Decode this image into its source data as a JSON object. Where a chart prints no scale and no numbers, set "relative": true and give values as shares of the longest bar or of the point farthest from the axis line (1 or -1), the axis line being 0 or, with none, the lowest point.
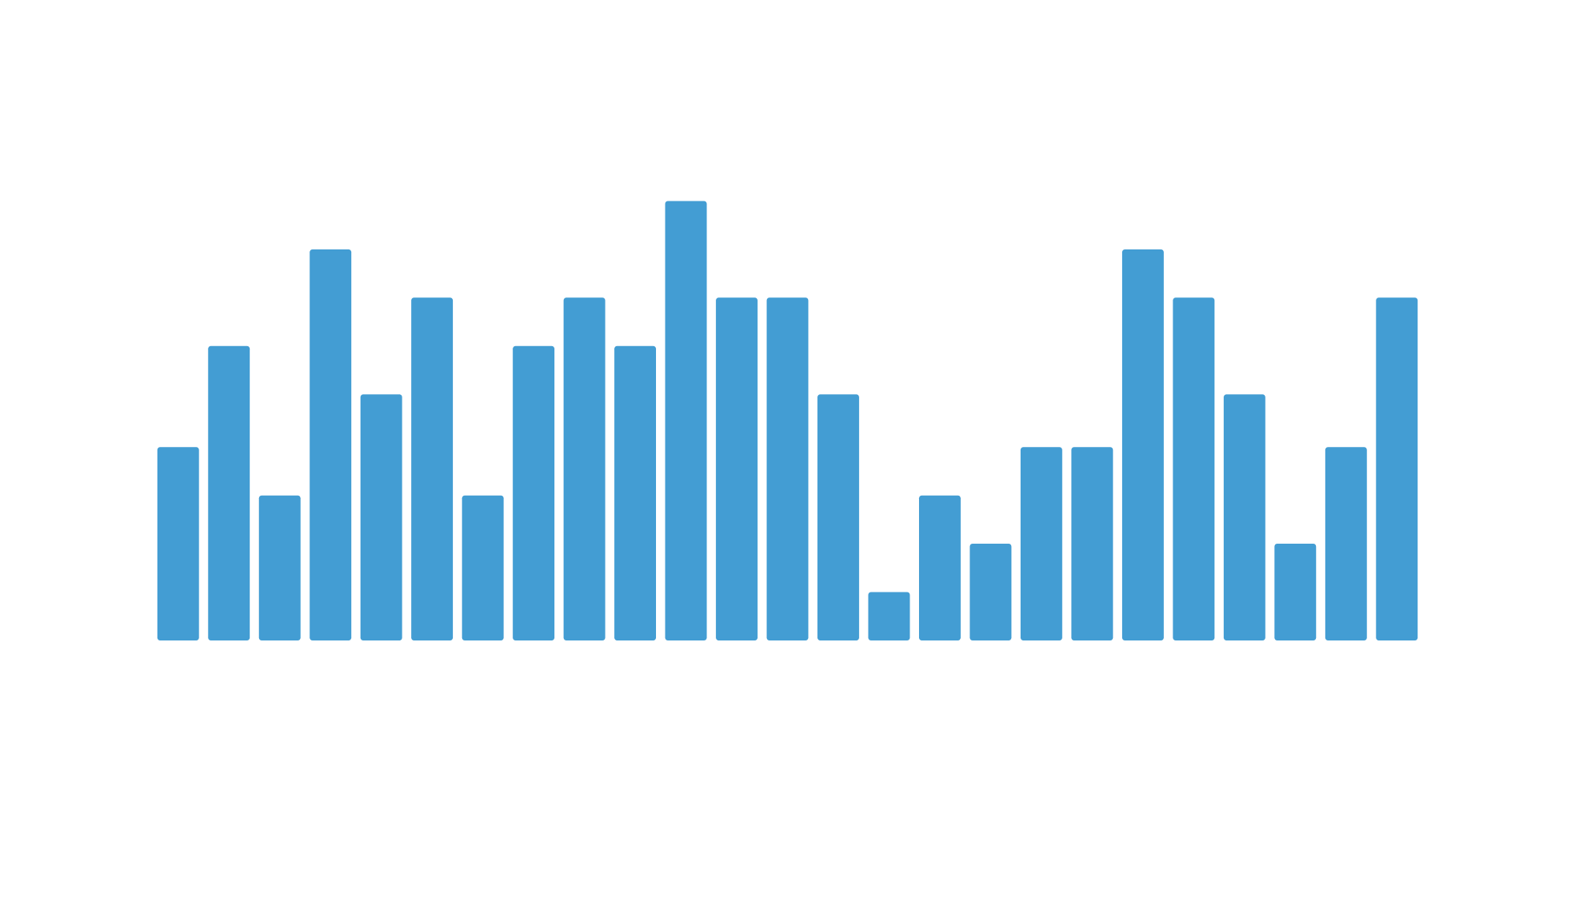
{
  "chart_data": {
    "type": "bar",
    "relative": true,
    "categories": [
      null,
      null,
      null,
      null,
      null,
      null,
      null,
      null,
      null,
      null,
      null,
      null,
      null,
      null,
      null,
      null,
      null,
      null,
      null,
      null,
      null,
      null,
      null,
      null,
      null
    ],
    "values": [
      0.44,
      0.67,
      0.33,
      0.89,
      0.56,
      0.78,
      0.33,
      0.67,
      0.78,
      0.67,
      1,
      0.78,
      0.78,
      0.56,
      0.11,
      0.33,
      0.22,
      0.44,
      0.44,
      0.89,
      0.78,
      0.56,
      0.22,
      0.44,
      0.78
    ],
    "color": "#439dd3"
  }
}
